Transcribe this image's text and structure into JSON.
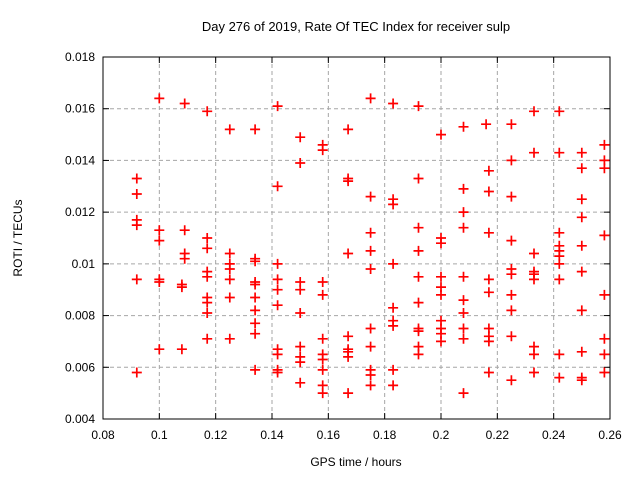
{
  "title": "Day 276 of 2019, Rate Of TEC Index for receiver sulp",
  "chart_data": {
    "type": "scatter",
    "title": "Day 276 of 2019, Rate Of TEC Index for receiver sulp",
    "xlabel": "GPS time / hours",
    "ylabel": "ROTI / TECUs",
    "xlim": [
      0.08,
      0.26
    ],
    "ylim": [
      0.004,
      0.018
    ],
    "grid": true,
    "legend": "none",
    "marker": {
      "shape": "plus",
      "color": "#ff0000",
      "size": 10
    },
    "grid_color": "#a6a6a6",
    "border_color": "#000000",
    "xticks": {
      "values": [
        0.08,
        0.1,
        0.12,
        0.14,
        0.16,
        0.18,
        0.2,
        0.22,
        0.24,
        0.26
      ],
      "labels": [
        "0.08",
        "0.1",
        "0.12",
        "0.14",
        "0.16",
        "0.18",
        "0.2",
        "0.22",
        "0.24",
        "0.26"
      ]
    },
    "yticks": {
      "values": [
        0.004,
        0.006,
        0.008,
        0.01,
        0.012,
        0.014,
        0.016,
        0.018
      ],
      "labels": [
        "0.004",
        "0.006",
        "0.008",
        "0.01",
        "0.012",
        "0.014",
        "0.016",
        "0.018"
      ]
    },
    "points": [
      [
        0.092,
        0.0133
      ],
      [
        0.092,
        0.0127
      ],
      [
        0.092,
        0.0117
      ],
      [
        0.092,
        0.0115
      ],
      [
        0.092,
        0.0094
      ],
      [
        0.092,
        0.0058
      ],
      [
        0.1,
        0.0164
      ],
      [
        0.1,
        0.0113
      ],
      [
        0.1,
        0.0109
      ],
      [
        0.1,
        0.0094
      ],
      [
        0.1,
        0.0093
      ],
      [
        0.1,
        0.0067
      ],
      [
        0.109,
        0.0162
      ],
      [
        0.109,
        0.0113
      ],
      [
        0.109,
        0.0104
      ],
      [
        0.109,
        0.0102
      ],
      [
        0.108,
        0.0092
      ],
      [
        0.108,
        0.0091
      ],
      [
        0.108,
        0.0067
      ],
      [
        0.117,
        0.0159
      ],
      [
        0.117,
        0.011
      ],
      [
        0.117,
        0.0106
      ],
      [
        0.117,
        0.0097
      ],
      [
        0.117,
        0.0095
      ],
      [
        0.117,
        0.0087
      ],
      [
        0.117,
        0.0085
      ],
      [
        0.117,
        0.0081
      ],
      [
        0.117,
        0.0071
      ],
      [
        0.125,
        0.0152
      ],
      [
        0.125,
        0.0104
      ],
      [
        0.125,
        0.01
      ],
      [
        0.125,
        0.0098
      ],
      [
        0.125,
        0.0094
      ],
      [
        0.125,
        0.0087
      ],
      [
        0.125,
        0.0071
      ],
      [
        0.134,
        0.0152
      ],
      [
        0.134,
        0.0102
      ],
      [
        0.134,
        0.0101
      ],
      [
        0.134,
        0.0093
      ],
      [
        0.134,
        0.0092
      ],
      [
        0.134,
        0.0087
      ],
      [
        0.134,
        0.0082
      ],
      [
        0.134,
        0.0077
      ],
      [
        0.134,
        0.0073
      ],
      [
        0.134,
        0.0059
      ],
      [
        0.142,
        0.0161
      ],
      [
        0.142,
        0.013
      ],
      [
        0.142,
        0.01
      ],
      [
        0.142,
        0.0094
      ],
      [
        0.142,
        0.009
      ],
      [
        0.142,
        0.0084
      ],
      [
        0.142,
        0.0067
      ],
      [
        0.142,
        0.0065
      ],
      [
        0.142,
        0.0059
      ],
      [
        0.142,
        0.0058
      ],
      [
        0.15,
        0.0149
      ],
      [
        0.15,
        0.0139
      ],
      [
        0.15,
        0.0093
      ],
      [
        0.15,
        0.009
      ],
      [
        0.15,
        0.0081
      ],
      [
        0.15,
        0.0068
      ],
      [
        0.15,
        0.0064
      ],
      [
        0.15,
        0.0062
      ],
      [
        0.15,
        0.0054
      ],
      [
        0.158,
        0.0146
      ],
      [
        0.158,
        0.0144
      ],
      [
        0.158,
        0.0093
      ],
      [
        0.158,
        0.0088
      ],
      [
        0.158,
        0.0071
      ],
      [
        0.158,
        0.0065
      ],
      [
        0.158,
        0.0063
      ],
      [
        0.158,
        0.0059
      ],
      [
        0.158,
        0.0053
      ],
      [
        0.158,
        0.005
      ],
      [
        0.167,
        0.0152
      ],
      [
        0.167,
        0.0133
      ],
      [
        0.167,
        0.0132
      ],
      [
        0.167,
        0.0104
      ],
      [
        0.167,
        0.0072
      ],
      [
        0.167,
        0.0067
      ],
      [
        0.167,
        0.0066
      ],
      [
        0.167,
        0.0064
      ],
      [
        0.167,
        0.005
      ],
      [
        0.175,
        0.0164
      ],
      [
        0.175,
        0.0126
      ],
      [
        0.175,
        0.0112
      ],
      [
        0.175,
        0.0105
      ],
      [
        0.175,
        0.0098
      ],
      [
        0.175,
        0.0075
      ],
      [
        0.175,
        0.0068
      ],
      [
        0.175,
        0.0059
      ],
      [
        0.175,
        0.0057
      ],
      [
        0.175,
        0.0053
      ],
      [
        0.183,
        0.0162
      ],
      [
        0.183,
        0.0125
      ],
      [
        0.183,
        0.0123
      ],
      [
        0.183,
        0.01
      ],
      [
        0.183,
        0.0083
      ],
      [
        0.183,
        0.0078
      ],
      [
        0.183,
        0.0076
      ],
      [
        0.183,
        0.0059
      ],
      [
        0.183,
        0.0053
      ],
      [
        0.192,
        0.0161
      ],
      [
        0.192,
        0.0133
      ],
      [
        0.192,
        0.0114
      ],
      [
        0.192,
        0.0105
      ],
      [
        0.192,
        0.0095
      ],
      [
        0.192,
        0.0085
      ],
      [
        0.192,
        0.0075
      ],
      [
        0.192,
        0.0074
      ],
      [
        0.192,
        0.0068
      ],
      [
        0.192,
        0.0065
      ],
      [
        0.2,
        0.015
      ],
      [
        0.2,
        0.011
      ],
      [
        0.2,
        0.0108
      ],
      [
        0.2,
        0.0095
      ],
      [
        0.2,
        0.0091
      ],
      [
        0.2,
        0.0088
      ],
      [
        0.2,
        0.0078
      ],
      [
        0.2,
        0.0075
      ],
      [
        0.2,
        0.0073
      ],
      [
        0.2,
        0.007
      ],
      [
        0.208,
        0.0153
      ],
      [
        0.208,
        0.0129
      ],
      [
        0.208,
        0.012
      ],
      [
        0.208,
        0.0114
      ],
      [
        0.208,
        0.0095
      ],
      [
        0.208,
        0.0086
      ],
      [
        0.208,
        0.0081
      ],
      [
        0.208,
        0.0075
      ],
      [
        0.208,
        0.0071
      ],
      [
        0.208,
        0.005
      ],
      [
        0.216,
        0.0154
      ],
      [
        0.217,
        0.0136
      ],
      [
        0.217,
        0.0128
      ],
      [
        0.217,
        0.0112
      ],
      [
        0.217,
        0.0094
      ],
      [
        0.217,
        0.0089
      ],
      [
        0.217,
        0.0075
      ],
      [
        0.217,
        0.0072
      ],
      [
        0.217,
        0.007
      ],
      [
        0.217,
        0.0058
      ],
      [
        0.225,
        0.0154
      ],
      [
        0.225,
        0.014
      ],
      [
        0.225,
        0.0126
      ],
      [
        0.225,
        0.0109
      ],
      [
        0.225,
        0.0098
      ],
      [
        0.225,
        0.0096
      ],
      [
        0.225,
        0.0088
      ],
      [
        0.225,
        0.0082
      ],
      [
        0.225,
        0.0072
      ],
      [
        0.225,
        0.0055
      ],
      [
        0.233,
        0.0159
      ],
      [
        0.233,
        0.0143
      ],
      [
        0.233,
        0.0104
      ],
      [
        0.233,
        0.0097
      ],
      [
        0.233,
        0.0096
      ],
      [
        0.233,
        0.0094
      ],
      [
        0.233,
        0.0068
      ],
      [
        0.233,
        0.0065
      ],
      [
        0.233,
        0.0058
      ],
      [
        0.242,
        0.0159
      ],
      [
        0.242,
        0.0143
      ],
      [
        0.242,
        0.0112
      ],
      [
        0.242,
        0.0107
      ],
      [
        0.242,
        0.0105
      ],
      [
        0.242,
        0.0103
      ],
      [
        0.242,
        0.01
      ],
      [
        0.242,
        0.0094
      ],
      [
        0.242,
        0.0065
      ],
      [
        0.242,
        0.0056
      ],
      [
        0.25,
        0.0143
      ],
      [
        0.25,
        0.0137
      ],
      [
        0.25,
        0.0125
      ],
      [
        0.25,
        0.0118
      ],
      [
        0.25,
        0.0107
      ],
      [
        0.25,
        0.0097
      ],
      [
        0.25,
        0.0082
      ],
      [
        0.25,
        0.0066
      ],
      [
        0.25,
        0.0056
      ],
      [
        0.25,
        0.0055
      ],
      [
        0.258,
        0.0146
      ],
      [
        0.258,
        0.014
      ],
      [
        0.258,
        0.0137
      ],
      [
        0.258,
        0.0111
      ],
      [
        0.258,
        0.0088
      ],
      [
        0.258,
        0.0071
      ],
      [
        0.258,
        0.0065
      ],
      [
        0.258,
        0.0058
      ]
    ]
  }
}
